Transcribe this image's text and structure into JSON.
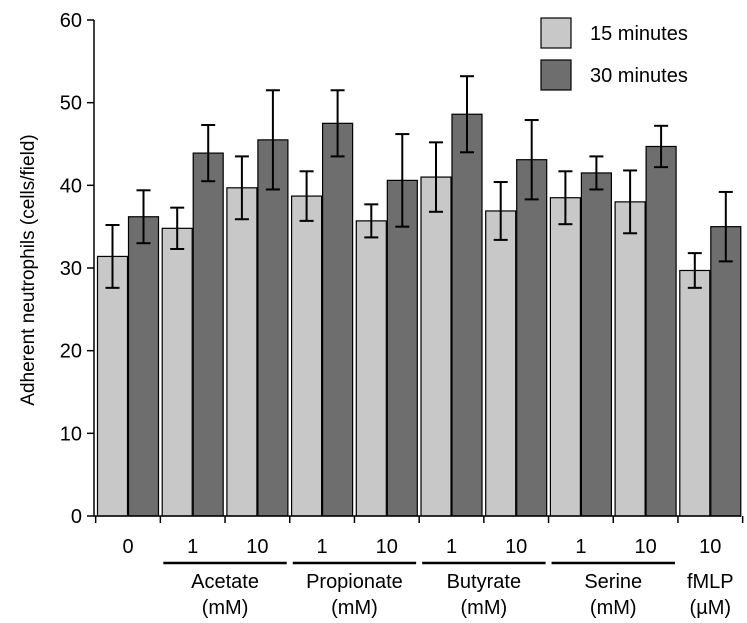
{
  "chart_data": {
    "type": "bar",
    "ylabel": "Adherent neutrophils (cells/field)",
    "ylim": [
      0,
      60
    ],
    "yticks": [
      0,
      10,
      20,
      30,
      40,
      50,
      60
    ],
    "categories": [
      "0",
      "1",
      "10",
      "1",
      "10",
      "1",
      "10",
      "1",
      "10",
      "10"
    ],
    "groups": [
      {
        "label_line1": "Acetate",
        "label_line2": "(mM)",
        "members": [
          1,
          2
        ]
      },
      {
        "label_line1": "Propionate",
        "label_line2": "(mM)",
        "members": [
          3,
          4
        ]
      },
      {
        "label_line1": "Butyrate",
        "label_line2": "(mM)",
        "members": [
          5,
          6
        ]
      },
      {
        "label_line1": "Serine",
        "label_line2": "(mM)",
        "members": [
          7,
          8
        ]
      },
      {
        "label_line1": "fMLP",
        "label_line2": "(µM)",
        "members": [
          9
        ]
      }
    ],
    "series": [
      {
        "name": "15 minutes",
        "color": "#c8c8c8",
        "values": [
          31.4,
          34.8,
          39.7,
          38.7,
          35.7,
          41.0,
          36.9,
          38.5,
          38.0,
          29.7
        ],
        "errors": [
          3.8,
          2.5,
          3.8,
          3.0,
          2.0,
          4.2,
          3.5,
          3.2,
          3.8,
          2.1
        ]
      },
      {
        "name": "30 minutes",
        "color": "#6e6e6e",
        "values": [
          36.2,
          43.9,
          45.5,
          47.5,
          40.6,
          48.6,
          43.1,
          41.5,
          44.7,
          35.0
        ],
        "errors": [
          3.2,
          3.4,
          6.0,
          4.0,
          5.6,
          4.6,
          4.8,
          2.0,
          2.5,
          4.2
        ]
      }
    ],
    "legend_position": "top-right",
    "grid": false
  }
}
